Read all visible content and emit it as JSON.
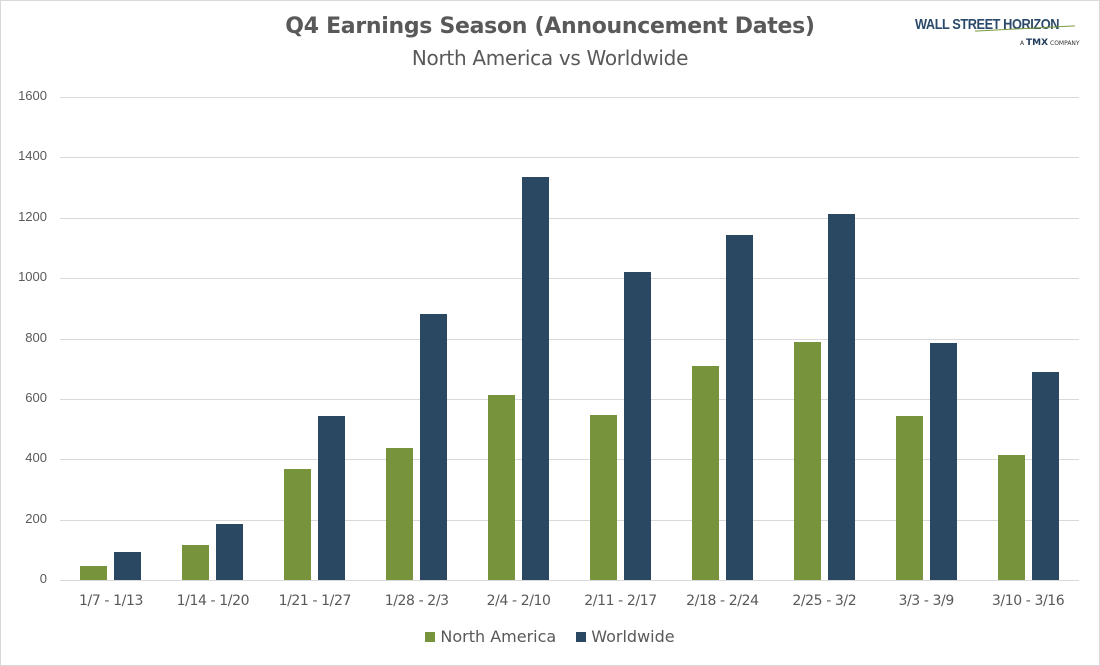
{
  "header": {
    "title": "Q4 Earnings Season (Announcement Dates)",
    "subtitle": "North America vs Worldwide",
    "logo_main": "WALL STREET HORIZON",
    "logo_sub_prefix": "A",
    "logo_sub_brand": "TMX",
    "logo_sub_suffix": "COMPANY"
  },
  "colors": {
    "north_america": "#77933c",
    "worldwide": "#2a4862",
    "grid": "#d9d9d9",
    "text": "#595959"
  },
  "legend": [
    {
      "label": "North America",
      "color": "#77933c"
    },
    {
      "label": "Worldwide",
      "color": "#2a4862"
    }
  ],
  "chart_data": {
    "type": "bar",
    "title": "Q4 Earnings Season (Announcement Dates)",
    "subtitle": "North America vs Worldwide",
    "xlabel": "",
    "ylabel": "",
    "ylim": [
      0,
      1600
    ],
    "yticks": [
      0,
      200,
      400,
      600,
      800,
      1000,
      1200,
      1400,
      1600
    ],
    "grid": true,
    "legend_position": "bottom",
    "categories": [
      "1/7 - 1/13",
      "1/14 - 1/20",
      "1/21 - 1/27",
      "1/28 - 2/3",
      "2/4 - 2/10",
      "2/11 - 2/17",
      "2/18 - 2/24",
      "2/25 - 3/2",
      "3/3 - 3/9",
      "3/10 - 3/16"
    ],
    "series": [
      {
        "name": "North America",
        "color": "#77933c",
        "values": [
          45,
          116,
          368,
          437,
          613,
          545,
          709,
          788,
          543,
          414
        ]
      },
      {
        "name": "Worldwide",
        "color": "#2a4862",
        "values": [
          92,
          185,
          543,
          881,
          1335,
          1020,
          1143,
          1212,
          785,
          689
        ]
      }
    ]
  }
}
